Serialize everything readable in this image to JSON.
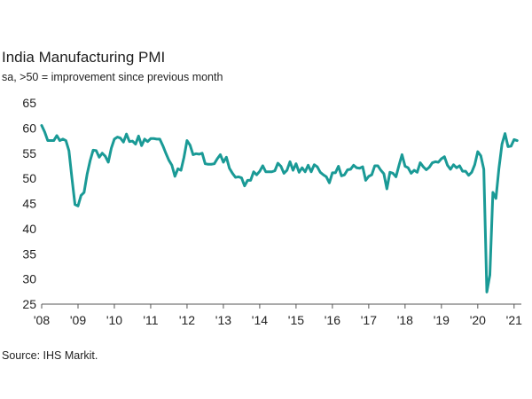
{
  "title": "India Manufacturing PMI",
  "subtitle": "sa, >50 = improvement since previous month",
  "source": "Source: IHS Markit.",
  "colors": {
    "line": "#1a9a96",
    "axis": "#555555",
    "gridline": "#c8c8c8",
    "text": "#222222"
  },
  "chart_data": {
    "type": "line",
    "title": "India Manufacturing PMI",
    "subtitle": "sa, >50 = improvement since previous month",
    "xlabel": "",
    "ylabel": "",
    "xlim": [
      2008.0,
      2021.2
    ],
    "ylim": [
      25,
      65
    ],
    "grid": false,
    "yticks": [
      25,
      30,
      35,
      40,
      45,
      50,
      55,
      60,
      65
    ],
    "xticks": [
      {
        "label": "'08",
        "value": 2008
      },
      {
        "label": "'09",
        "value": 2009
      },
      {
        "label": "'10",
        "value": 2010
      },
      {
        "label": "'11",
        "value": 2011
      },
      {
        "label": "'12",
        "value": 2012
      },
      {
        "label": "'13",
        "value": 2013
      },
      {
        "label": "'14",
        "value": 2014
      },
      {
        "label": "'15",
        "value": 2015
      },
      {
        "label": "'16",
        "value": 2016
      },
      {
        "label": "'17",
        "value": 2017
      },
      {
        "label": "'18",
        "value": 2018
      },
      {
        "label": "'19",
        "value": 2019
      },
      {
        "label": "'20",
        "value": 2020
      },
      {
        "label": "'21",
        "value": 2021
      }
    ],
    "series": [
      {
        "name": "India Manufacturing PMI",
        "start": 2008.0,
        "step": 0.083333,
        "values": [
          60.5,
          59.2,
          57.5,
          57.5,
          57.5,
          58.5,
          57.5,
          57.8,
          57.5,
          55.5,
          50.0,
          44.8,
          44.5,
          46.6,
          47.2,
          50.8,
          53.5,
          55.6,
          55.5,
          54.2,
          55.0,
          54.4,
          53.2,
          56.0,
          57.8,
          58.2,
          58.0,
          57.2,
          58.8,
          57.3,
          57.4,
          56.8,
          58.4,
          56.5,
          57.8,
          57.3,
          57.9,
          57.9,
          57.8,
          57.8,
          56.5,
          55.0,
          53.6,
          52.6,
          50.4,
          51.9,
          51.6,
          54.2,
          57.5,
          56.6,
          54.7,
          54.9,
          54.8,
          55.0,
          52.9,
          52.8,
          52.8,
          52.9,
          53.9,
          54.7,
          53.2,
          54.2,
          52.0,
          51.0,
          50.2,
          50.3,
          50.1,
          48.5,
          49.6,
          49.6,
          51.3,
          50.7,
          51.4,
          52.5,
          51.3,
          51.3,
          51.3,
          51.5,
          53.0,
          52.4,
          51.0,
          51.6,
          53.3,
          51.6,
          52.9,
          51.2,
          52.1,
          51.3,
          52.6,
          51.3,
          52.7,
          52.3,
          51.2,
          50.7,
          50.3,
          49.1,
          51.1,
          51.1,
          52.4,
          50.5,
          50.7,
          51.7,
          51.8,
          52.6,
          52.1,
          52.0,
          52.3,
          49.6,
          50.4,
          50.7,
          52.5,
          52.5,
          51.6,
          50.9,
          47.9,
          51.2,
          51.0,
          50.3,
          52.6,
          54.7,
          52.4,
          52.1,
          51.0,
          51.6,
          51.2,
          53.1,
          52.3,
          51.7,
          52.2,
          53.1,
          53.3,
          53.2,
          53.9,
          54.3,
          52.6,
          51.8,
          52.7,
          52.1,
          52.5,
          51.4,
          51.4,
          50.6,
          51.2,
          52.7,
          55.3,
          54.5,
          51.8,
          27.4,
          30.8,
          47.2,
          46.0,
          52.0,
          56.8,
          58.9,
          56.3,
          56.4,
          57.7,
          57.5
        ]
      }
    ]
  }
}
